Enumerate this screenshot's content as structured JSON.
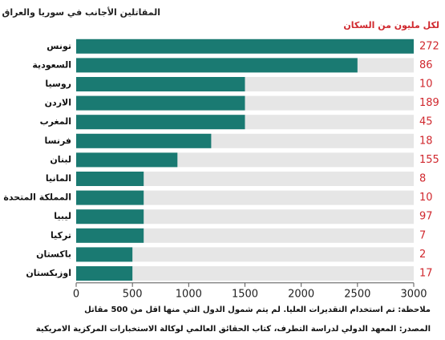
{
  "chart_data": {
    "type": "barh",
    "title": "المقاتلين الأجانب في سوريا والعراق",
    "categories": [
      "تونس",
      "السعودية",
      "روسيا",
      "الاردن",
      "المغرب",
      "فرنسا",
      "لبنان",
      "المانيا",
      "المملكة المتحدة",
      "ليبيا",
      "تركيا",
      "باكستان",
      "اوزبكستان"
    ],
    "values": [
      3000,
      2500,
      1500,
      1500,
      1500,
      1200,
      900,
      600,
      600,
      600,
      600,
      500,
      500
    ],
    "color": "#1a7a72",
    "per_million": {
      "label": "لكل مليون من السكان",
      "color": "#d0282e",
      "values": [
        272,
        86,
        10,
        189,
        45,
        18,
        155,
        8,
        10,
        97,
        7,
        2,
        17
      ]
    },
    "xlim": [
      0,
      3000
    ],
    "xticks": [
      0,
      500,
      1000,
      1500,
      2000,
      2500,
      3000
    ],
    "notes": [
      "ملاحظة: تم استخدام التقديرات العليا. لم يتم شمول الدول التي منها اقل من 500 مقاتل",
      "المصدر: المعهد الدولي لدراسة التطرف، كتاب الحقائق العالمي لوكالة الاستخبارات المركزية الامريكية"
    ]
  }
}
